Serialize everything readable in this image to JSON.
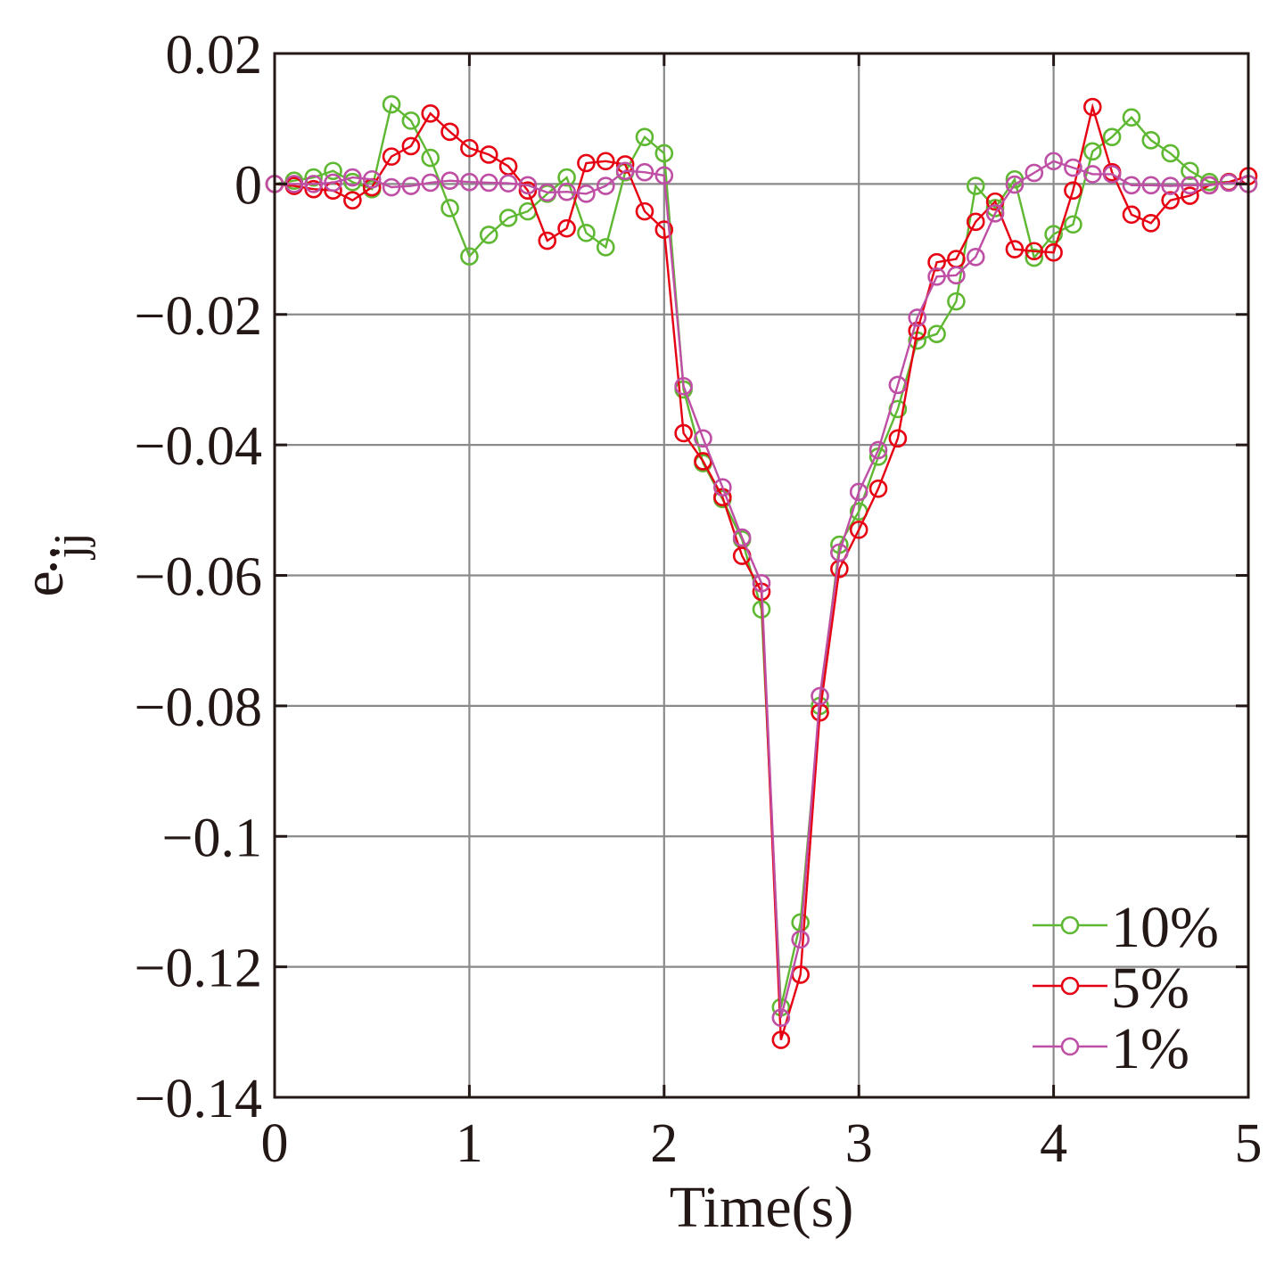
{
  "chart_data": {
    "type": "line",
    "xlabel": "Time(s)",
    "ylabel_main": "e",
    "ylabel_sub": "jj",
    "xlim": [
      0,
      5
    ],
    "ylim": [
      -0.14,
      0.02
    ],
    "xticks": [
      "0",
      "1",
      "2",
      "3",
      "4",
      "5"
    ],
    "yticks": [
      "0.02",
      "0",
      "−0.02",
      "−0.04",
      "−0.06",
      "−0.08",
      "−0.1",
      "−0.12",
      "−0.14"
    ],
    "ytick_values": [
      0.02,
      0,
      -0.02,
      -0.04,
      -0.06,
      -0.08,
      -0.1,
      -0.12,
      -0.14
    ],
    "grid": true,
    "legend_position": "bottom-right",
    "marker": "open-circle",
    "x": [
      0,
      0.1,
      0.2,
      0.3,
      0.4,
      0.5,
      0.6,
      0.7,
      0.8,
      0.9,
      1.0,
      1.1,
      1.2,
      1.3,
      1.4,
      1.5,
      1.6,
      1.7,
      1.8,
      1.9,
      2.0,
      2.1,
      2.2,
      2.3,
      2.4,
      2.5,
      2.6,
      2.7,
      2.8,
      2.9,
      3.0,
      3.1,
      3.2,
      3.3,
      3.4,
      3.5,
      3.6,
      3.7,
      3.8,
      3.9,
      4.0,
      4.1,
      4.2,
      4.3,
      4.4,
      4.5,
      4.6,
      4.7,
      4.8,
      4.9,
      5.0
    ],
    "series": [
      {
        "name": "10%",
        "color": "#5fb832",
        "values": [
          0,
          0.0005,
          0.001,
          0.002,
          0.0003,
          -0.0008,
          0.0122,
          0.0097,
          0.004,
          -0.0037,
          -0.0111,
          -0.0078,
          -0.0052,
          -0.0042,
          -0.0015,
          0.001,
          -0.0075,
          -0.0097,
          0.0018,
          0.0072,
          0.0047,
          -0.0315,
          -0.0428,
          -0.0483,
          -0.0545,
          -0.0652,
          -0.1262,
          -0.1132,
          -0.08,
          -0.0553,
          -0.0502,
          -0.0418,
          -0.0345,
          -0.024,
          -0.023,
          -0.018,
          -0.0003,
          -0.0037,
          0.0007,
          -0.0113,
          -0.0077,
          -0.0062,
          0.005,
          0.0072,
          0.0102,
          0.0067,
          0.0047,
          0.002,
          0.0003,
          0.0003,
          0.0
        ]
      },
      {
        "name": "5%",
        "color": "#e60012",
        "values": [
          0,
          -0.0003,
          -0.0008,
          -0.001,
          -0.0025,
          -0.0005,
          0.0042,
          0.0058,
          0.0108,
          0.008,
          0.0055,
          0.0045,
          0.0027,
          -0.001,
          -0.0087,
          -0.0068,
          0.0032,
          0.0035,
          0.003,
          -0.0042,
          -0.007,
          -0.0382,
          -0.0425,
          -0.048,
          -0.057,
          -0.0625,
          -0.1312,
          -0.1212,
          -0.081,
          -0.059,
          -0.053,
          -0.0467,
          -0.039,
          -0.0225,
          -0.012,
          -0.0115,
          -0.0058,
          -0.0027,
          -0.01,
          -0.0103,
          -0.0105,
          -0.001,
          0.0118,
          0.0018,
          -0.0047,
          -0.006,
          -0.0025,
          -0.0018,
          -0.0002,
          0.0003,
          0.0012
        ]
      },
      {
        "name": "1%",
        "color": "#be4fa5",
        "values": [
          0,
          0.0,
          0.0,
          0.0002,
          0.001,
          0.0007,
          -0.0005,
          -0.0003,
          0.0002,
          0.0005,
          0.0003,
          0.0002,
          0.0001,
          -0.0002,
          -0.0013,
          -0.0012,
          -0.0015,
          -0.0003,
          0.002,
          0.0018,
          0.0013,
          -0.031,
          -0.039,
          -0.0465,
          -0.0542,
          -0.0612,
          -0.1278,
          -0.1158,
          -0.0785,
          -0.0565,
          -0.0472,
          -0.0408,
          -0.0308,
          -0.0205,
          -0.0142,
          -0.014,
          -0.0112,
          -0.0045,
          -0.0001,
          0.0017,
          0.0035,
          0.0025,
          0.0015,
          0.0015,
          -0.0002,
          -0.0002,
          -0.0003,
          -0.0002,
          -0.0002,
          0.0002,
          0.0
        ]
      }
    ]
  }
}
